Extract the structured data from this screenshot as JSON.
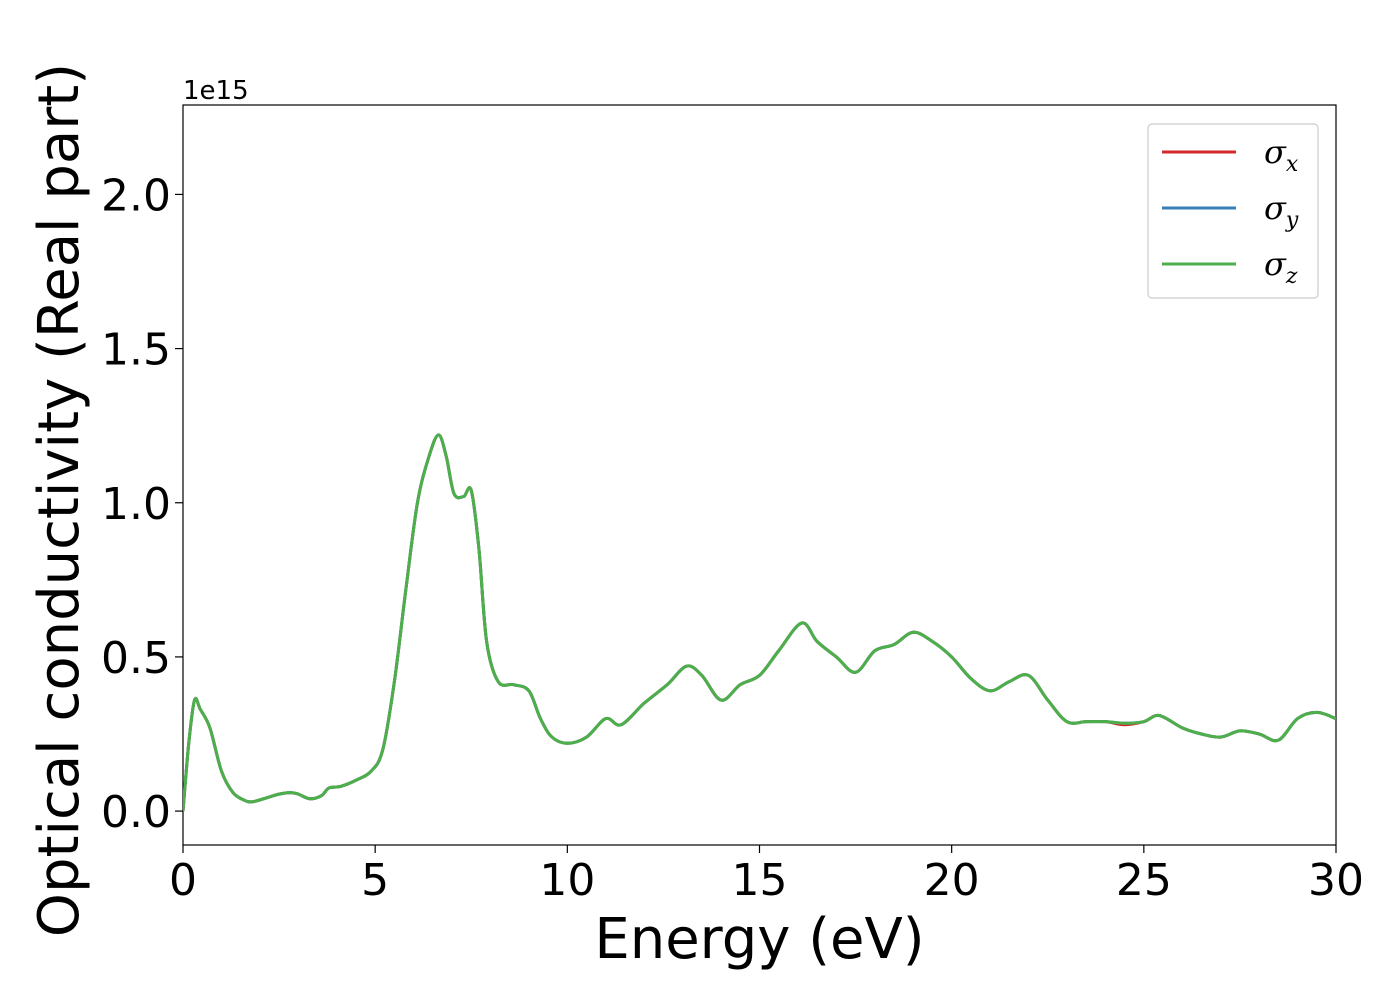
{
  "chart_data": {
    "type": "line",
    "title": "",
    "xlabel": "Energy (eV)",
    "ylabel": "Optical conductivity (Real part)",
    "y_offset_text": "1e15",
    "y_scale_multiplier": 1000000000000000.0,
    "xlim": [
      0,
      30
    ],
    "ylim": [
      -0.11,
      2.29
    ],
    "xticks": [
      0,
      5,
      10,
      15,
      20,
      25,
      30
    ],
    "xtick_labels": [
      "0",
      "5",
      "10",
      "15",
      "20",
      "25",
      "30"
    ],
    "yticks": [
      0.0,
      0.5,
      1.0,
      1.5,
      2.0
    ],
    "ytick_labels": [
      "0.0",
      "0.5",
      "1.0",
      "1.5",
      "2.0"
    ],
    "grid": false,
    "legend_position": "top-right",
    "x": [
      0,
      0.15,
      0.3,
      0.45,
      0.7,
      1.0,
      1.3,
      1.6,
      1.8,
      2.1,
      2.5,
      2.8,
      3.0,
      3.3,
      3.6,
      3.8,
      4.1,
      4.5,
      4.9,
      5.2,
      5.5,
      5.8,
      6.1,
      6.4,
      6.65,
      6.85,
      7.05,
      7.3,
      7.5,
      7.7,
      7.9,
      8.2,
      8.6,
      9.0,
      9.3,
      9.6,
      10.0,
      10.5,
      11.0,
      11.4,
      12.0,
      12.6,
      13.1,
      13.5,
      14.0,
      14.5,
      15.0,
      15.5,
      16.1,
      16.5,
      17.0,
      17.5,
      18.0,
      18.5,
      19.0,
      19.5,
      20.0,
      20.5,
      21.0,
      21.5,
      22.0,
      22.5,
      23.0,
      23.5,
      24.0,
      24.5,
      25.0,
      25.4,
      26.0,
      26.5,
      27.0,
      27.5,
      28.0,
      28.5,
      29.0,
      29.5,
      30.0
    ],
    "series": [
      {
        "name": "σx",
        "color": "#d62728",
        "values": [
          0.0,
          0.22,
          0.36,
          0.33,
          0.27,
          0.13,
          0.06,
          0.035,
          0.03,
          0.04,
          0.055,
          0.06,
          0.055,
          0.04,
          0.05,
          0.075,
          0.08,
          0.1,
          0.13,
          0.2,
          0.42,
          0.72,
          1.0,
          1.15,
          1.22,
          1.15,
          1.03,
          1.02,
          1.04,
          0.85,
          0.55,
          0.42,
          0.41,
          0.39,
          0.3,
          0.24,
          0.22,
          0.24,
          0.3,
          0.28,
          0.35,
          0.41,
          0.47,
          0.44,
          0.36,
          0.41,
          0.44,
          0.52,
          0.61,
          0.55,
          0.5,
          0.45,
          0.52,
          0.54,
          0.58,
          0.55,
          0.5,
          0.43,
          0.39,
          0.42,
          0.44,
          0.36,
          0.29,
          0.29,
          0.29,
          0.28,
          0.29,
          0.31,
          0.27,
          0.25,
          0.24,
          0.26,
          0.25,
          0.23,
          0.3,
          0.32,
          0.3
        ]
      },
      {
        "name": "σy",
        "color": "#377eb8",
        "values": [
          0.0,
          0.22,
          0.36,
          0.33,
          0.27,
          0.13,
          0.06,
          0.035,
          0.03,
          0.04,
          0.055,
          0.06,
          0.055,
          0.04,
          0.05,
          0.075,
          0.08,
          0.1,
          0.13,
          0.2,
          0.42,
          0.72,
          1.0,
          1.15,
          1.22,
          1.15,
          1.03,
          1.02,
          1.04,
          0.85,
          0.55,
          0.42,
          0.41,
          0.39,
          0.3,
          0.24,
          0.22,
          0.24,
          0.3,
          0.28,
          0.35,
          0.41,
          0.47,
          0.44,
          0.36,
          0.41,
          0.44,
          0.52,
          0.61,
          0.55,
          0.5,
          0.45,
          0.52,
          0.54,
          0.58,
          0.55,
          0.5,
          0.43,
          0.39,
          0.42,
          0.44,
          0.36,
          0.29,
          0.29,
          0.29,
          0.285,
          0.29,
          0.31,
          0.27,
          0.25,
          0.24,
          0.26,
          0.25,
          0.23,
          0.3,
          0.32,
          0.3
        ]
      },
      {
        "name": "σz",
        "color": "#4daf4a",
        "values": [
          0.0,
          0.22,
          0.36,
          0.33,
          0.27,
          0.13,
          0.06,
          0.035,
          0.03,
          0.04,
          0.055,
          0.06,
          0.055,
          0.04,
          0.05,
          0.075,
          0.08,
          0.1,
          0.13,
          0.2,
          0.42,
          0.72,
          1.0,
          1.15,
          1.22,
          1.15,
          1.03,
          1.02,
          1.04,
          0.85,
          0.55,
          0.42,
          0.41,
          0.39,
          0.3,
          0.24,
          0.22,
          0.24,
          0.3,
          0.28,
          0.35,
          0.41,
          0.47,
          0.44,
          0.36,
          0.41,
          0.44,
          0.52,
          0.61,
          0.55,
          0.5,
          0.45,
          0.52,
          0.54,
          0.58,
          0.55,
          0.5,
          0.43,
          0.39,
          0.42,
          0.44,
          0.36,
          0.29,
          0.29,
          0.29,
          0.285,
          0.29,
          0.31,
          0.27,
          0.25,
          0.24,
          0.26,
          0.25,
          0.23,
          0.3,
          0.32,
          0.3
        ]
      }
    ],
    "legend": [
      {
        "symbol": "σ",
        "subscript": "x"
      },
      {
        "symbol": "σ",
        "subscript": "y"
      },
      {
        "symbol": "σ",
        "subscript": "z"
      }
    ]
  }
}
